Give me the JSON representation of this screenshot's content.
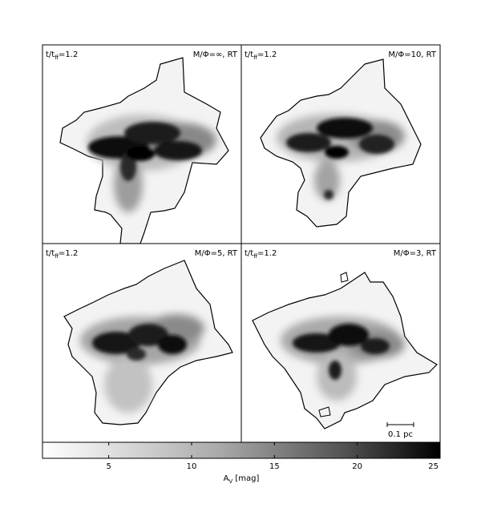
{
  "panels": [
    {
      "time_label": "t/t",
      "time_sub": "ff",
      "time_value": "=1.2",
      "model_label": "M/Φ=∞, RT"
    },
    {
      "time_label": "t/t",
      "time_sub": "ff",
      "time_value": "=1.2",
      "model_label": "M/Φ=10, RT"
    },
    {
      "time_label": "t/t",
      "time_sub": "ff",
      "time_value": "=1.2",
      "model_label": "M/Φ=5, RT"
    },
    {
      "time_label": "t/t",
      "time_sub": "ff",
      "time_value": "=1.2",
      "model_label": "M/Φ=3, RT"
    }
  ],
  "scalebar": {
    "label": "0.1 pc"
  },
  "colorbar": {
    "min": 1,
    "max": 25,
    "ticks": [
      5,
      10,
      15,
      20,
      25
    ],
    "tick_labels": [
      "5",
      "10",
      "15",
      "20",
      "25"
    ],
    "label_main": "A",
    "label_sub": "V",
    "label_unit": " [mag]",
    "colormap": "white-to-black grayscale"
  }
}
